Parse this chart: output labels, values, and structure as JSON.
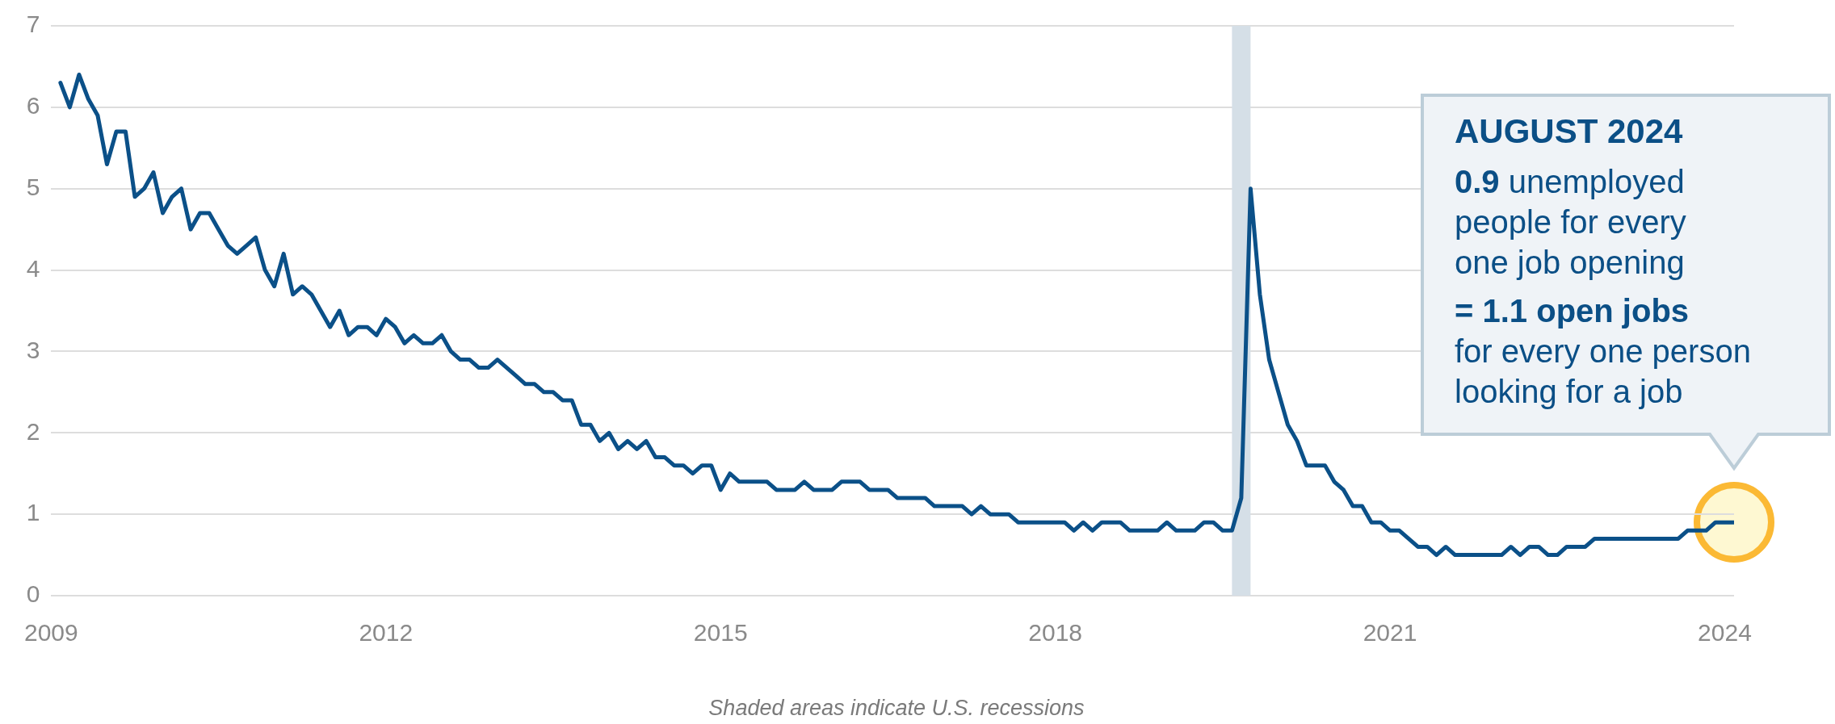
{
  "chart_data": {
    "type": "line",
    "x": [
      "2009-08",
      "2009-09",
      "2009-10",
      "2009-11",
      "2009-12",
      "2010-01",
      "2010-02",
      "2010-03",
      "2010-04",
      "2010-05",
      "2010-06",
      "2010-07",
      "2010-08",
      "2010-09",
      "2010-10",
      "2010-11",
      "2010-12",
      "2011-01",
      "2011-02",
      "2011-03",
      "2011-04",
      "2011-05",
      "2011-06",
      "2011-07",
      "2011-08",
      "2011-09",
      "2011-10",
      "2011-11",
      "2011-12",
      "2012-01",
      "2012-02",
      "2012-03",
      "2012-04",
      "2012-05",
      "2012-06",
      "2012-07",
      "2012-08",
      "2012-09",
      "2012-10",
      "2012-11",
      "2012-12",
      "2013-01",
      "2013-02",
      "2013-03",
      "2013-04",
      "2013-05",
      "2013-06",
      "2013-07",
      "2013-08",
      "2013-09",
      "2013-10",
      "2013-11",
      "2013-12",
      "2014-01",
      "2014-02",
      "2014-03",
      "2014-04",
      "2014-05",
      "2014-06",
      "2014-07",
      "2014-08",
      "2014-09",
      "2014-10",
      "2014-11",
      "2014-12",
      "2015-01",
      "2015-02",
      "2015-03",
      "2015-04",
      "2015-05",
      "2015-06",
      "2015-07",
      "2015-08",
      "2015-09",
      "2015-10",
      "2015-11",
      "2015-12",
      "2016-01",
      "2016-02",
      "2016-03",
      "2016-04",
      "2016-05",
      "2016-06",
      "2016-07",
      "2016-08",
      "2016-09",
      "2016-10",
      "2016-11",
      "2016-12",
      "2017-01",
      "2017-02",
      "2017-03",
      "2017-04",
      "2017-05",
      "2017-06",
      "2017-07",
      "2017-08",
      "2017-09",
      "2017-10",
      "2017-11",
      "2017-12",
      "2018-01",
      "2018-02",
      "2018-03",
      "2018-04",
      "2018-05",
      "2018-06",
      "2018-07",
      "2018-08",
      "2018-09",
      "2018-10",
      "2018-11",
      "2018-12",
      "2019-01",
      "2019-02",
      "2019-03",
      "2019-04",
      "2019-05",
      "2019-06",
      "2019-07",
      "2019-08",
      "2019-09",
      "2019-10",
      "2019-11",
      "2019-12",
      "2020-01",
      "2020-02",
      "2020-03",
      "2020-04",
      "2020-05",
      "2020-06",
      "2020-07",
      "2020-08",
      "2020-09",
      "2020-10",
      "2020-11",
      "2020-12",
      "2021-01",
      "2021-02",
      "2021-03",
      "2021-04",
      "2021-05",
      "2021-06",
      "2021-07",
      "2021-08",
      "2021-09",
      "2021-10",
      "2021-11",
      "2021-12",
      "2022-01",
      "2022-02",
      "2022-03",
      "2022-04",
      "2022-05",
      "2022-06",
      "2022-07",
      "2022-08",
      "2022-09",
      "2022-10",
      "2022-11",
      "2022-12",
      "2023-01",
      "2023-02",
      "2023-03",
      "2023-04",
      "2023-05",
      "2023-06",
      "2023-07",
      "2023-08",
      "2023-09",
      "2023-10",
      "2023-11",
      "2023-12",
      "2024-01",
      "2024-02",
      "2024-03",
      "2024-04",
      "2024-05",
      "2024-06",
      "2024-07",
      "2024-08"
    ],
    "series": [
      {
        "color": "#0b5088",
        "values": [
          6.3,
          6.0,
          6.4,
          6.1,
          5.9,
          5.3,
          5.7,
          5.7,
          4.9,
          5.0,
          5.2,
          4.7,
          4.9,
          5.0,
          4.5,
          4.7,
          4.7,
          4.5,
          4.3,
          4.2,
          4.3,
          4.4,
          4.0,
          3.8,
          4.2,
          3.7,
          3.8,
          3.7,
          3.5,
          3.3,
          3.5,
          3.2,
          3.3,
          3.3,
          3.2,
          3.4,
          3.3,
          3.1,
          3.2,
          3.1,
          3.1,
          3.2,
          3.0,
          2.9,
          2.9,
          2.8,
          2.8,
          2.9,
          2.8,
          2.7,
          2.6,
          2.6,
          2.5,
          2.5,
          2.4,
          2.4,
          2.1,
          2.1,
          1.9,
          2.0,
          1.8,
          1.9,
          1.8,
          1.9,
          1.7,
          1.7,
          1.6,
          1.6,
          1.5,
          1.6,
          1.6,
          1.3,
          1.5,
          1.4,
          1.4,
          1.4,
          1.4,
          1.3,
          1.3,
          1.3,
          1.4,
          1.3,
          1.3,
          1.3,
          1.4,
          1.4,
          1.4,
          1.3,
          1.3,
          1.3,
          1.2,
          1.2,
          1.2,
          1.2,
          1.1,
          1.1,
          1.1,
          1.1,
          1.0,
          1.1,
          1.0,
          1.0,
          1.0,
          0.9,
          0.9,
          0.9,
          0.9,
          0.9,
          0.9,
          0.8,
          0.9,
          0.8,
          0.9,
          0.9,
          0.9,
          0.8,
          0.8,
          0.8,
          0.8,
          0.9,
          0.8,
          0.8,
          0.8,
          0.9,
          0.9,
          0.8,
          0.8,
          1.2,
          5.0,
          3.7,
          2.9,
          2.5,
          2.1,
          1.9,
          1.6,
          1.6,
          1.6,
          1.4,
          1.3,
          1.1,
          1.1,
          0.9,
          0.9,
          0.8,
          0.8,
          0.7,
          0.6,
          0.6,
          0.5,
          0.6,
          0.5,
          0.5,
          0.5,
          0.5,
          0.5,
          0.5,
          0.6,
          0.5,
          0.6,
          0.6,
          0.5,
          0.5,
          0.6,
          0.6,
          0.6,
          0.7,
          0.7,
          0.7,
          0.7,
          0.7,
          0.7,
          0.7,
          0.7,
          0.7,
          0.7,
          0.8,
          0.8,
          0.8,
          0.9,
          0.9,
          0.9
        ]
      }
    ],
    "xlim": [
      "2009-07",
      "2024-08"
    ],
    "xticks": [
      {
        "value": "2009-07",
        "label": "2009"
      },
      {
        "value": "2012-07",
        "label": "2012"
      },
      {
        "value": "2015-07",
        "label": "2015"
      },
      {
        "value": "2018-07",
        "label": "2018"
      },
      {
        "value": "2021-07",
        "label": "2021"
      },
      {
        "value": "2024-07",
        "label": "2024"
      }
    ],
    "ylim": [
      0,
      7
    ],
    "yticks": [
      0,
      1,
      2,
      3,
      4,
      5,
      6,
      7
    ],
    "grid": "y",
    "legend": false,
    "marker": "none",
    "line_style": "solid",
    "bands": [
      {
        "axis": "x",
        "from": "2020-02",
        "to": "2020-04",
        "color": "#d5dfe7"
      }
    ],
    "annotations": [
      "AUGUST 2024",
      "0.9 unemployed\npeople for every\none job opening",
      "= 1.1 open jobs",
      "for every one person looking for a job",
      "Shaded areas indicate U.S. recessions"
    ]
  }
}
